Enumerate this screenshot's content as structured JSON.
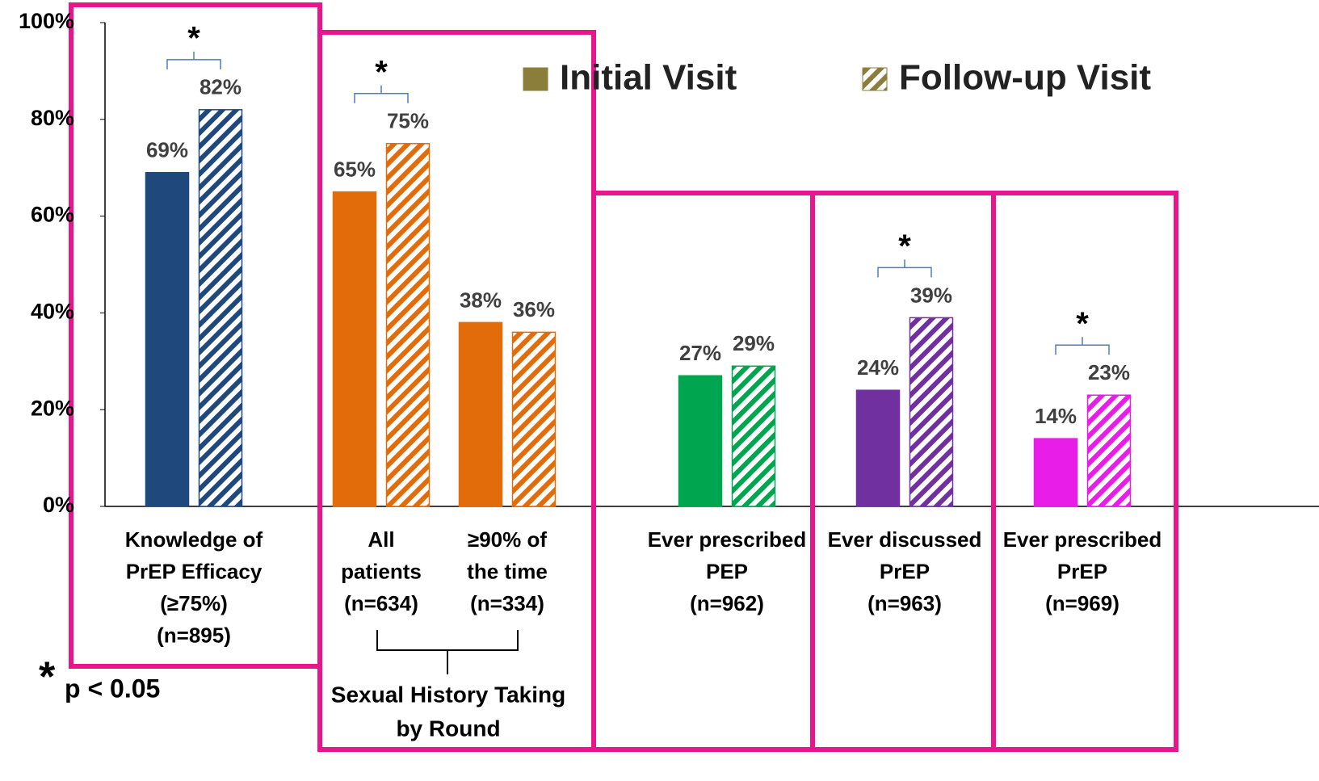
{
  "chart_data": {
    "type": "bar",
    "categories": [
      [
        "Knowledge of",
        "PrEP Efficacy",
        "(≥75%)",
        "(n=895)"
      ],
      [
        "All",
        "patients",
        "(n=634)"
      ],
      [
        "≥90% of",
        "the time",
        "(n=334)"
      ],
      [
        "Ever prescribed",
        "PEP",
        "(n=962)"
      ],
      [
        "Ever discussed",
        "PrEP",
        "(n=963)"
      ],
      [
        "Ever prescribed",
        "PrEP",
        "(n=969)"
      ]
    ],
    "category_colors": [
      "#1f497d",
      "#e36c0a",
      "#e36c0a",
      "#00a550",
      "#7030a0",
      "#e81ee8"
    ],
    "series": [
      {
        "name": "Initial Visit",
        "color": "#8b7d3a",
        "hatch": false,
        "values": [
          69,
          65,
          38,
          27,
          24,
          14
        ],
        "value_labels": [
          "69%",
          "65%",
          "38%",
          "27%",
          "24%",
          "14%"
        ]
      },
      {
        "name": "Follow-up Visit",
        "color": "#8b7d3a",
        "hatch": true,
        "values": [
          82,
          75,
          36,
          29,
          39,
          23
        ],
        "value_labels": [
          "82%",
          "75%",
          "36%",
          "29%",
          "39%",
          "23%"
        ]
      }
    ],
    "significant": [
      true,
      true,
      false,
      false,
      true,
      true
    ],
    "significance_marker": "*",
    "group_label": [
      "Sexual History Taking",
      "by Round"
    ],
    "footnote_marker": "*",
    "footnote": "p < 0.05",
    "ylim": [
      0,
      100
    ],
    "yticks": [
      {
        "value": 0,
        "label": "0%"
      },
      {
        "value": 20,
        "label": "20%"
      },
      {
        "value": 40,
        "label": "40%"
      },
      {
        "value": 60,
        "label": "60%"
      },
      {
        "value": 80,
        "label": "80%"
      },
      {
        "value": 100,
        "label": "100%"
      }
    ]
  }
}
